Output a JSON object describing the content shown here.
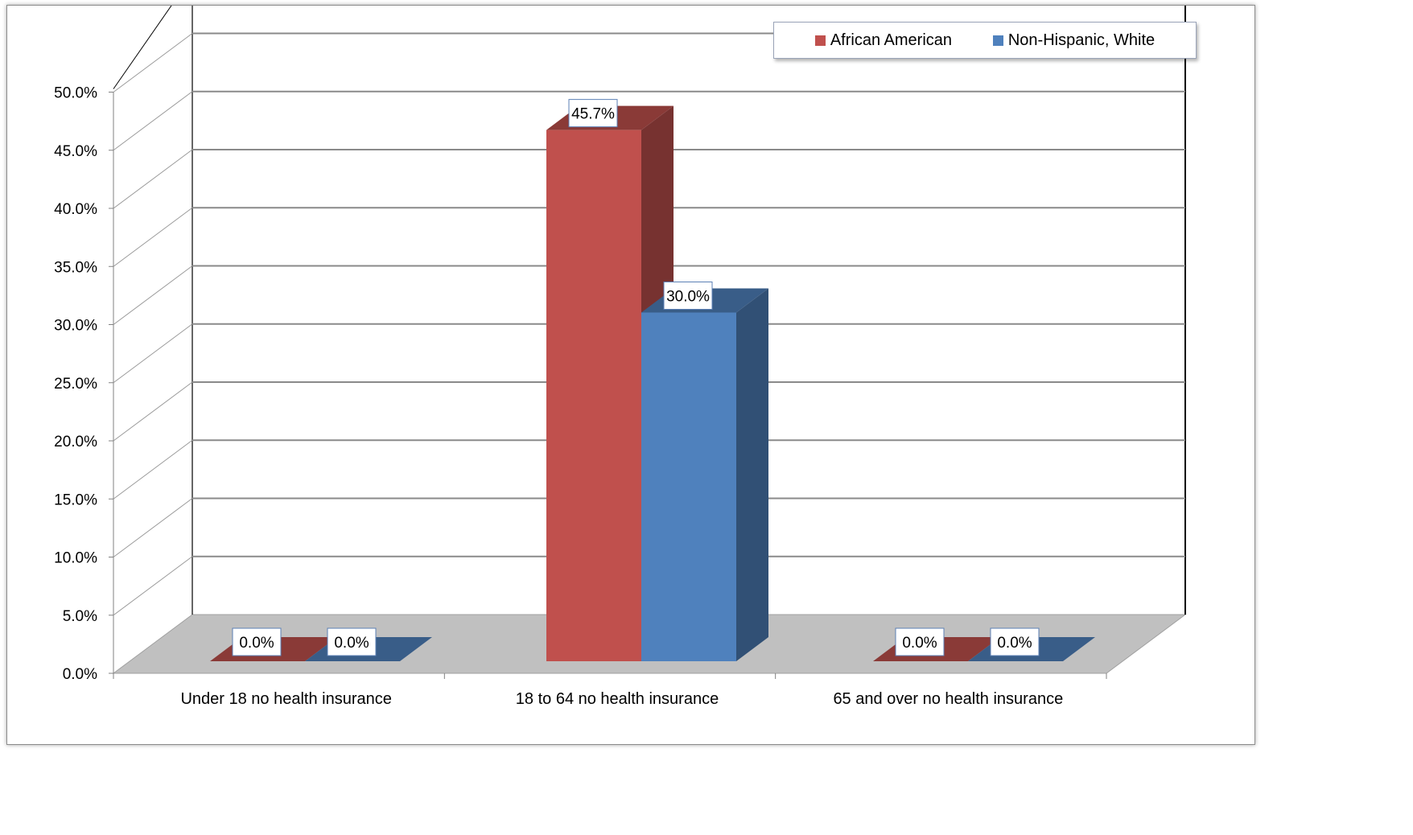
{
  "chart_data": {
    "type": "bar",
    "title": "",
    "xlabel": "",
    "ylabel": "",
    "categories": [
      "Under 18  no health insurance",
      "18 to 64 no health insurance",
      "65 and over no health insurance"
    ],
    "series": [
      {
        "name": "African American",
        "values": [
          0.0,
          45.7,
          0.0
        ],
        "labels": [
          "0.0%",
          "45.7%",
          "0.0%"
        ],
        "color": "#c0504d"
      },
      {
        "name": "Non-Hispanic, White",
        "values": [
          0.0,
          30.0,
          0.0
        ],
        "labels": [
          "0.0%",
          "30.0%",
          "0.0%"
        ],
        "color": "#4f81bd"
      }
    ],
    "ylim": [
      0,
      50
    ],
    "yticks": [
      "0.0%",
      "5.0%",
      "10.0%",
      "15.0%",
      "20.0%",
      "25.0%",
      "30.0%",
      "35.0%",
      "40.0%",
      "45.0%",
      "50.0%"
    ],
    "grid": true,
    "legend_position": "top-right",
    "three_d": true
  }
}
